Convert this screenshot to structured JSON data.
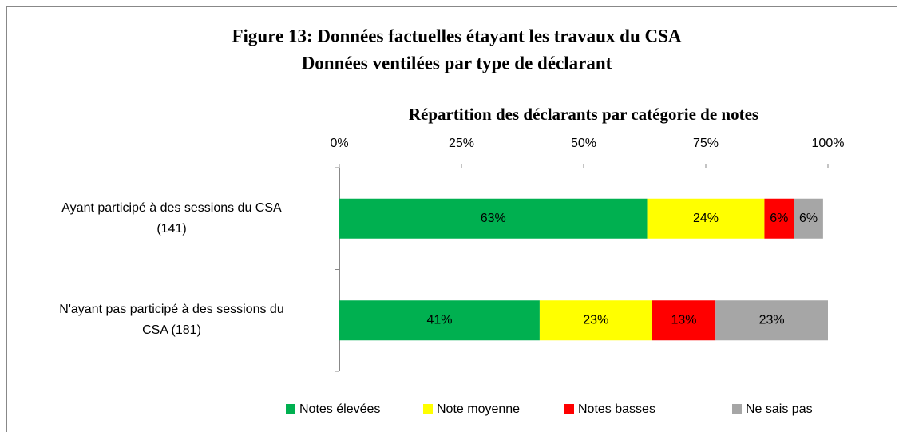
{
  "chart_data": {
    "type": "stacked_barh",
    "figure_title": [
      "Figure 13: Données factuelles étayant les travaux du CSA",
      "Données ventilées par type de déclarant"
    ],
    "title": "Répartition des déclarants par catégorie de notes",
    "categories": [
      "Ayant participé à des sessions du CSA\n(141)",
      "N'ayant pas participé à des sessions du\nCSA (181)"
    ],
    "series": [
      {
        "name": "Notes élevées",
        "color": "#00b050",
        "values": [
          63,
          41
        ],
        "value_labels": [
          "63%",
          "41%"
        ]
      },
      {
        "name": "Note moyenne",
        "color": "#ffff00",
        "values": [
          24,
          23
        ],
        "value_labels": [
          "24%",
          "23%"
        ]
      },
      {
        "name": "Notes basses",
        "color": "#ff0000",
        "values": [
          6,
          13
        ],
        "value_labels": [
          "6%",
          "13%"
        ]
      },
      {
        "name": "Ne sais pas",
        "color": "#a6a6a6",
        "values": [
          6,
          23
        ],
        "value_labels": [
          "6%",
          "23%"
        ]
      }
    ],
    "xlim": [
      0,
      100
    ],
    "xticks": [
      {
        "value": 0,
        "label": "0%"
      },
      {
        "value": 25,
        "label": "25%"
      },
      {
        "value": 50,
        "label": "50%"
      },
      {
        "value": 75,
        "label": "75%"
      },
      {
        "value": 100,
        "label": "100%"
      }
    ],
    "legend": "bottom"
  }
}
